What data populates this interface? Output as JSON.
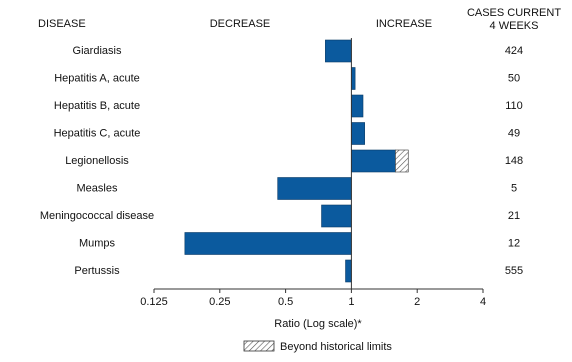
{
  "chart_data": {
    "type": "bar",
    "orientation": "horizontal",
    "log_scale": true,
    "base_value": 1,
    "column_headers": {
      "disease": "DISEASE",
      "decrease": "DECREASE",
      "increase": "INCREASE",
      "cases": [
        "CASES CURRENT",
        "4 WEEKS"
      ]
    },
    "categories": [
      "Giardiasis",
      "Hepatitis A, acute",
      "Hepatitis B, acute",
      "Hepatitis C, acute",
      "Legionellosis",
      "Measles",
      "Meningococcal disease",
      "Mumps",
      "Pertussis"
    ],
    "values": [
      0.76,
      1.04,
      1.13,
      1.15,
      1.82,
      0.46,
      0.73,
      0.173,
      0.94
    ],
    "historical_limits": [
      null,
      null,
      null,
      null,
      1.59,
      null,
      null,
      null,
      null
    ],
    "cases": [
      424,
      50,
      110,
      49,
      148,
      5,
      21,
      12,
      555
    ],
    "color": "#0b5a9e",
    "xlim": [
      0.125,
      4
    ],
    "xticks": [
      0.125,
      0.25,
      0.5,
      1,
      2,
      4
    ],
    "xlabel": "Ratio (Log scale)*",
    "legend": "Beyond historical limits"
  }
}
